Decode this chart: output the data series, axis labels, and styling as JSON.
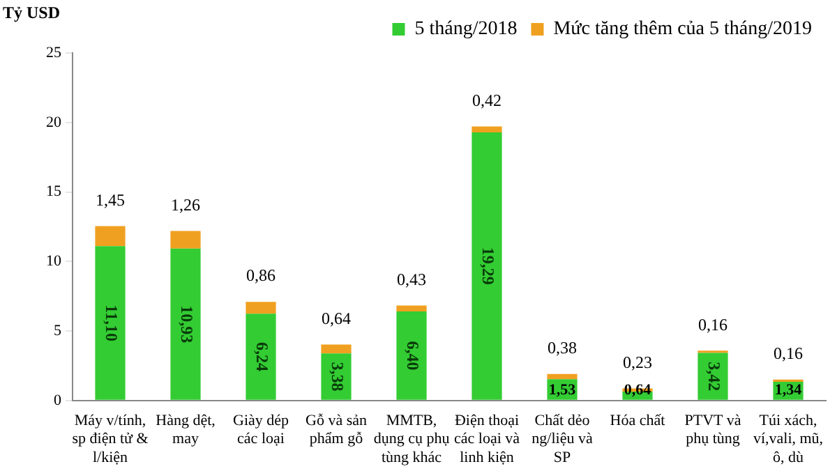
{
  "chart_data": {
    "type": "bar",
    "stacked": true,
    "ylabel": "Tỷ USD",
    "ylim": [
      0,
      25
    ],
    "yticks": [
      0,
      5,
      10,
      15,
      20,
      25
    ],
    "grid": false,
    "legend": "top right",
    "categories": [
      "Máy v/tính, sp điện tử & l/kiện",
      "Hàng dệt, may",
      "Giày dép các loại",
      "Gỗ và sản phẩm gỗ",
      "MMTB, dụng cụ phụ tùng khác",
      "Điện thoại các loại và linh kiện",
      "Chất dẻo ng/liệu và SP",
      "Hóa chất",
      "PTVT và phụ tùng",
      "Túi xách, ví,vali, mũ, ô, dù"
    ],
    "series": [
      {
        "name": "5 tháng/2018",
        "color": "#33cc33",
        "values": [
          11.1,
          10.93,
          6.24,
          3.38,
          6.4,
          19.29,
          1.53,
          0.64,
          3.42,
          1.34
        ],
        "value_labels": [
          "11,10",
          "10,93",
          "6,24",
          "3,38",
          "6,40",
          "19,29",
          "1,53",
          "0,64",
          "3,42",
          "1,34"
        ]
      },
      {
        "name": "Mức tăng thêm của 5 tháng/2019",
        "color": "#f0a020",
        "values": [
          1.45,
          1.26,
          0.86,
          0.64,
          0.43,
          0.42,
          0.38,
          0.23,
          0.16,
          0.16
        ],
        "value_labels": [
          "1,45",
          "1,26",
          "0,86",
          "0,64",
          "0,43",
          "0,42",
          "0,38",
          "0,23",
          "0,16",
          "0,16"
        ]
      }
    ]
  }
}
